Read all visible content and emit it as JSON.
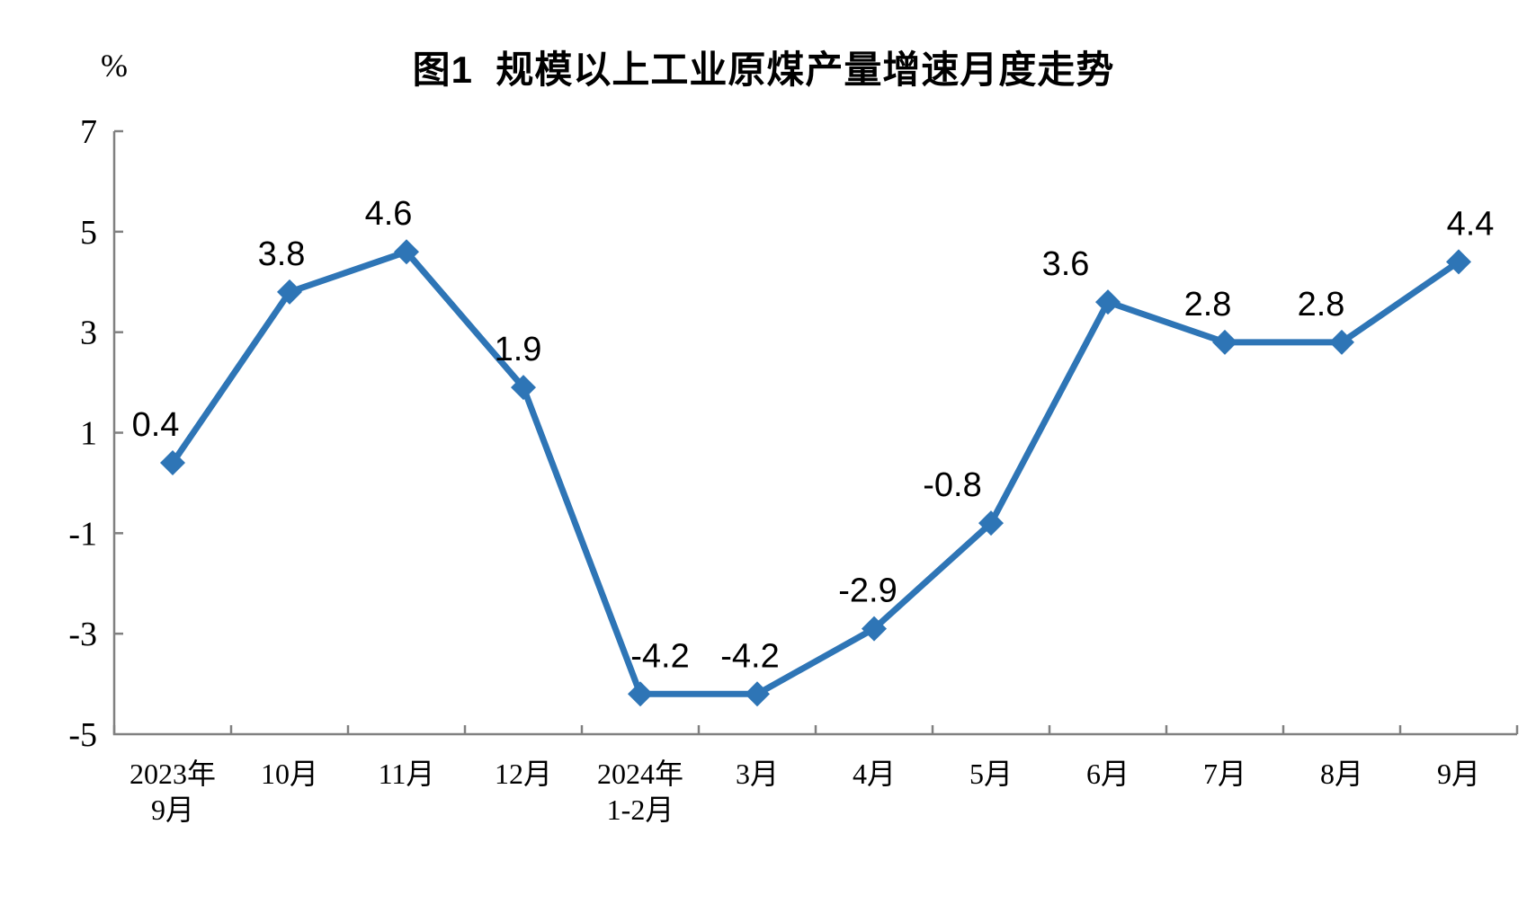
{
  "chart_data": {
    "type": "line",
    "title": "图1  规模以上工业原煤产量增速月度走势",
    "unit_label": "%",
    "xlabel": "",
    "ylabel": "%",
    "categories": [
      "2023年\n9月",
      "10月",
      "11月",
      "12月",
      "2024年\n1-2月",
      "3月",
      "4月",
      "5月",
      "6月",
      "7月",
      "8月",
      "9月"
    ],
    "series": [
      {
        "name": "规模以上工业原煤产量增速",
        "values": [
          0.4,
          3.8,
          4.6,
          1.9,
          -4.2,
          -4.2,
          -2.9,
          -0.8,
          3.6,
          2.8,
          2.8,
          4.4
        ],
        "data_labels": [
          "0.4",
          "3.8",
          "4.6",
          "1.9",
          "-4.2",
          "-4.2",
          "-2.9",
          "-0.8",
          "3.6",
          "2.8",
          "2.8",
          "4.4"
        ]
      }
    ],
    "y_axis": {
      "min": -5,
      "max": 7,
      "tick_step": 2,
      "tick_labels": [
        "7",
        "5",
        "3",
        "1",
        "-1",
        "-3",
        "-5"
      ]
    },
    "grid": false,
    "legend_position": "none",
    "marker": "diamond",
    "line_color": "#2E75B6",
    "axis_color": "#808080",
    "text_color": "#000000",
    "label_dx": [
      -19,
      -9,
      -20,
      -6,
      22,
      -8,
      -7,
      -43,
      -47,
      -19,
      -23,
      13
    ]
  }
}
